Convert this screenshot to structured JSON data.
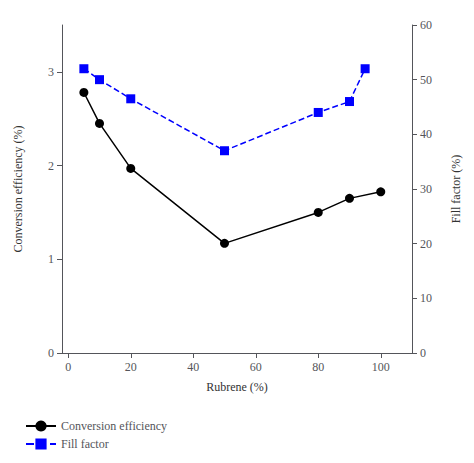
{
  "chart_data": {
    "type": "line",
    "xlabel": "Rubrene (%)",
    "ylabel": "Conversion efficiency (%)",
    "y2label": "Fill factor (%)",
    "xlim": [
      -2,
      110
    ],
    "xticks": [
      0,
      20,
      40,
      60,
      80,
      100
    ],
    "ylim": [
      0,
      3.5
    ],
    "yticks": [
      0,
      1,
      2,
      3
    ],
    "y2lim": [
      0,
      60
    ],
    "y2ticks": [
      0,
      10,
      20,
      30,
      40,
      50,
      60
    ],
    "grid": false,
    "legend": "bottom",
    "series": [
      {
        "name": "Conversion efficiency",
        "color": "black",
        "marker": "circle",
        "line_style": "solid",
        "x": [
          5,
          10,
          20,
          50,
          80,
          90,
          100
        ],
        "values": [
          2.78,
          2.45,
          1.97,
          1.17,
          1.5,
          1.65,
          1.72
        ]
      },
      {
        "name": "Fill factor",
        "color": "blue",
        "marker": "square",
        "line_style": "dashed",
        "axis": "y2",
        "x": [
          5,
          10,
          20,
          50,
          80,
          90,
          95
        ],
        "values": [
          52,
          50,
          46.5,
          37,
          44,
          46,
          52
        ]
      }
    ]
  }
}
